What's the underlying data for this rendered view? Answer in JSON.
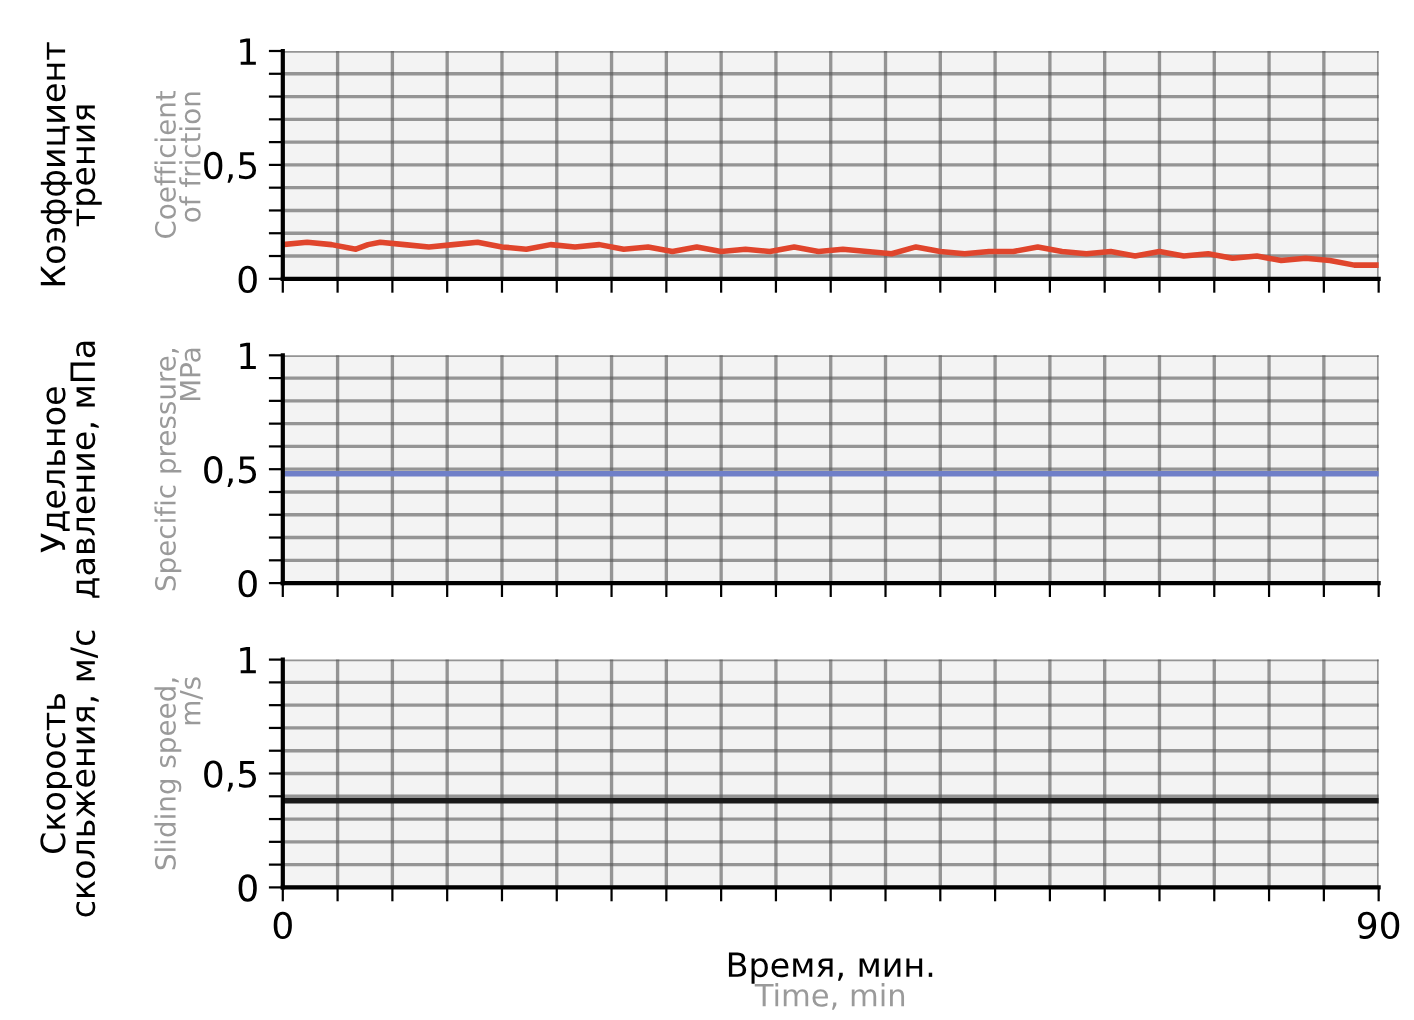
{
  "chart_data": [
    {
      "type": "line",
      "ylabel": "Коэффициент\nтрения",
      "annotations": [
        "Coefficient\nof friction"
      ],
      "tick_labels": "y",
      "grid": true,
      "xlim": [
        0,
        90
      ],
      "ylim": [
        0,
        1
      ],
      "xticks": [
        {
          "value": 0,
          "label": null
        },
        {
          "value": 4.5,
          "label": null
        },
        {
          "value": 9,
          "label": null
        },
        {
          "value": 13.5,
          "label": null
        },
        {
          "value": 18,
          "label": null
        },
        {
          "value": 22.5,
          "label": null
        },
        {
          "value": 27,
          "label": null
        },
        {
          "value": 31.5,
          "label": null
        },
        {
          "value": 36,
          "label": null
        },
        {
          "value": 40.5,
          "label": null
        },
        {
          "value": 45,
          "label": null
        },
        {
          "value": 49.5,
          "label": null
        },
        {
          "value": 54,
          "label": null
        },
        {
          "value": 58.5,
          "label": null
        },
        {
          "value": 63,
          "label": null
        },
        {
          "value": 67.5,
          "label": null
        },
        {
          "value": 72,
          "label": null
        },
        {
          "value": 76.5,
          "label": null
        },
        {
          "value": 81,
          "label": null
        },
        {
          "value": 85.5,
          "label": null
        },
        {
          "value": 90,
          "label": null
        }
      ],
      "yticks": [
        0,
        {
          "value": 0.1,
          "label": null
        },
        {
          "value": 0.2,
          "label": null
        },
        {
          "value": 0.3,
          "label": null
        },
        {
          "value": 0.4,
          "label": null
        },
        {
          "value": 0.5,
          "label": "0,5"
        },
        {
          "value": 0.6,
          "label": null
        },
        {
          "value": 0.7,
          "label": null
        },
        {
          "value": 0.8,
          "label": null
        },
        {
          "value": 0.9,
          "label": null
        },
        1
      ],
      "series": [
        {
          "color": "#e0452c",
          "x": [
            0,
            2,
            4,
            6,
            7,
            8,
            10,
            12,
            14,
            16,
            18,
            20,
            22,
            24,
            26,
            28,
            30,
            32,
            34,
            36,
            38,
            40,
            42,
            44,
            46,
            48,
            50,
            52,
            54,
            56,
            58,
            60,
            62,
            64,
            66,
            68,
            70,
            72,
            74,
            76,
            78,
            80,
            82,
            84,
            86,
            88,
            90
          ],
          "values": [
            0.15,
            0.16,
            0.15,
            0.13,
            0.15,
            0.16,
            0.15,
            0.14,
            0.15,
            0.16,
            0.14,
            0.13,
            0.15,
            0.14,
            0.15,
            0.13,
            0.14,
            0.12,
            0.14,
            0.12,
            0.13,
            0.12,
            0.14,
            0.12,
            0.13,
            0.12,
            0.11,
            0.14,
            0.12,
            0.11,
            0.12,
            0.12,
            0.14,
            0.12,
            0.11,
            0.12,
            0.1,
            0.12,
            0.1,
            0.11,
            0.09,
            0.1,
            0.08,
            0.09,
            0.08,
            0.06,
            0.06
          ]
        }
      ]
    },
    {
      "type": "line",
      "ylabel": "Удельное\nдавление, мПа",
      "annotations": [
        "Specific pressure,\nMPa"
      ],
      "tick_labels": "y",
      "grid": true,
      "xlim": [
        0,
        90
      ],
      "ylim": [
        0,
        1
      ],
      "xticks": [
        {
          "value": 0,
          "label": null
        },
        {
          "value": 4.5,
          "label": null
        },
        {
          "value": 9,
          "label": null
        },
        {
          "value": 13.5,
          "label": null
        },
        {
          "value": 18,
          "label": null
        },
        {
          "value": 22.5,
          "label": null
        },
        {
          "value": 27,
          "label": null
        },
        {
          "value": 31.5,
          "label": null
        },
        {
          "value": 36,
          "label": null
        },
        {
          "value": 40.5,
          "label": null
        },
        {
          "value": 45,
          "label": null
        },
        {
          "value": 49.5,
          "label": null
        },
        {
          "value": 54,
          "label": null
        },
        {
          "value": 58.5,
          "label": null
        },
        {
          "value": 63,
          "label": null
        },
        {
          "value": 67.5,
          "label": null
        },
        {
          "value": 72,
          "label": null
        },
        {
          "value": 76.5,
          "label": null
        },
        {
          "value": 81,
          "label": null
        },
        {
          "value": 85.5,
          "label": null
        },
        {
          "value": 90,
          "label": null
        }
      ],
      "yticks": [
        0,
        {
          "value": 0.1,
          "label": null
        },
        {
          "value": 0.2,
          "label": null
        },
        {
          "value": 0.3,
          "label": null
        },
        {
          "value": 0.4,
          "label": null
        },
        {
          "value": 0.5,
          "label": "0,5"
        },
        {
          "value": 0.6,
          "label": null
        },
        {
          "value": 0.7,
          "label": null
        },
        {
          "value": 0.8,
          "label": null
        },
        {
          "value": 0.9,
          "label": null
        },
        1
      ],
      "series": [
        {
          "color": "#6f7fc8",
          "x": [
            0,
            90
          ],
          "values": [
            0.48,
            0.48
          ]
        }
      ]
    },
    {
      "type": "line",
      "ylabel": "Скорость\nскольжения, м/с",
      "xlabel": "Время, мин.",
      "annotations": [
        "Sliding speed,\nm/s",
        "Time, min"
      ],
      "grid": true,
      "xlim": [
        0,
        90
      ],
      "ylim": [
        0,
        1
      ],
      "xticks": [
        0,
        {
          "value": 4.5,
          "label": null
        },
        {
          "value": 9,
          "label": null
        },
        {
          "value": 13.5,
          "label": null
        },
        {
          "value": 18,
          "label": null
        },
        {
          "value": 22.5,
          "label": null
        },
        {
          "value": 27,
          "label": null
        },
        {
          "value": 31.5,
          "label": null
        },
        {
          "value": 36,
          "label": null
        },
        {
          "value": 40.5,
          "label": null
        },
        {
          "value": 45,
          "label": null
        },
        {
          "value": 49.5,
          "label": null
        },
        {
          "value": 54,
          "label": null
        },
        {
          "value": 58.5,
          "label": null
        },
        {
          "value": 63,
          "label": null
        },
        {
          "value": 67.5,
          "label": null
        },
        {
          "value": 72,
          "label": null
        },
        {
          "value": 76.5,
          "label": null
        },
        {
          "value": 81,
          "label": null
        },
        {
          "value": 85.5,
          "label": null
        },
        90
      ],
      "yticks": [
        0,
        {
          "value": 0.1,
          "label": null
        },
        {
          "value": 0.2,
          "label": null
        },
        {
          "value": 0.3,
          "label": null
        },
        {
          "value": 0.4,
          "label": null
        },
        {
          "value": 0.5,
          "label": "0,5"
        },
        {
          "value": 0.6,
          "label": null
        },
        {
          "value": 0.7,
          "label": null
        },
        {
          "value": 0.8,
          "label": null
        },
        {
          "value": 0.9,
          "label": null
        },
        1
      ],
      "series": [
        {
          "color": "#1a1a1a",
          "x": [
            0,
            10,
            20,
            30,
            40,
            50,
            60,
            70,
            80,
            90
          ],
          "values": [
            0.38,
            0.38,
            0.38,
            0.38,
            0.38,
            0.38,
            0.38,
            0.38,
            0.38,
            0.38
          ]
        }
      ]
    }
  ]
}
